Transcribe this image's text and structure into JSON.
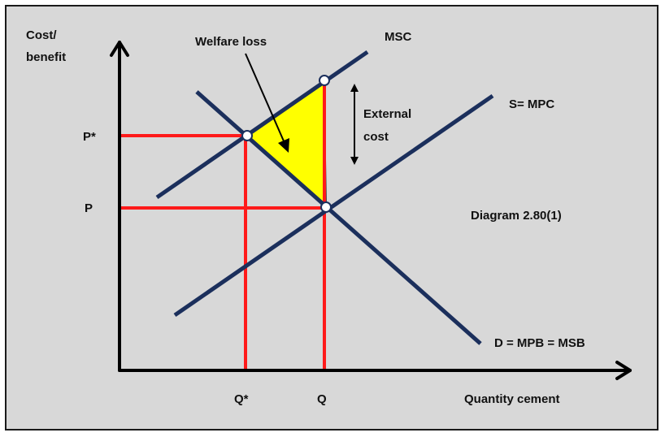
{
  "axes": {
    "y_label_line1": "Cost/",
    "y_label_line2": "benefit",
    "x_label": "Quantity cement"
  },
  "price_labels": {
    "p_star": "P*",
    "p": "P"
  },
  "quantity_labels": {
    "q_star": "Q*",
    "q": "Q"
  },
  "curves": {
    "msc": "MSC",
    "supply": "S= MPC",
    "demand": "D = MPB = MSB"
  },
  "annotations": {
    "welfare_loss": "Welfare loss",
    "external_cost_line1": "External",
    "external_cost_line2": "cost",
    "diagram_id": "Diagram 2.80(1)"
  },
  "colors": {
    "curve": "#1b2f5c",
    "guide": "#ff1a1a",
    "welfare_area": "#ffff00",
    "axis": "#000000",
    "background": "#d8d8d8"
  }
}
